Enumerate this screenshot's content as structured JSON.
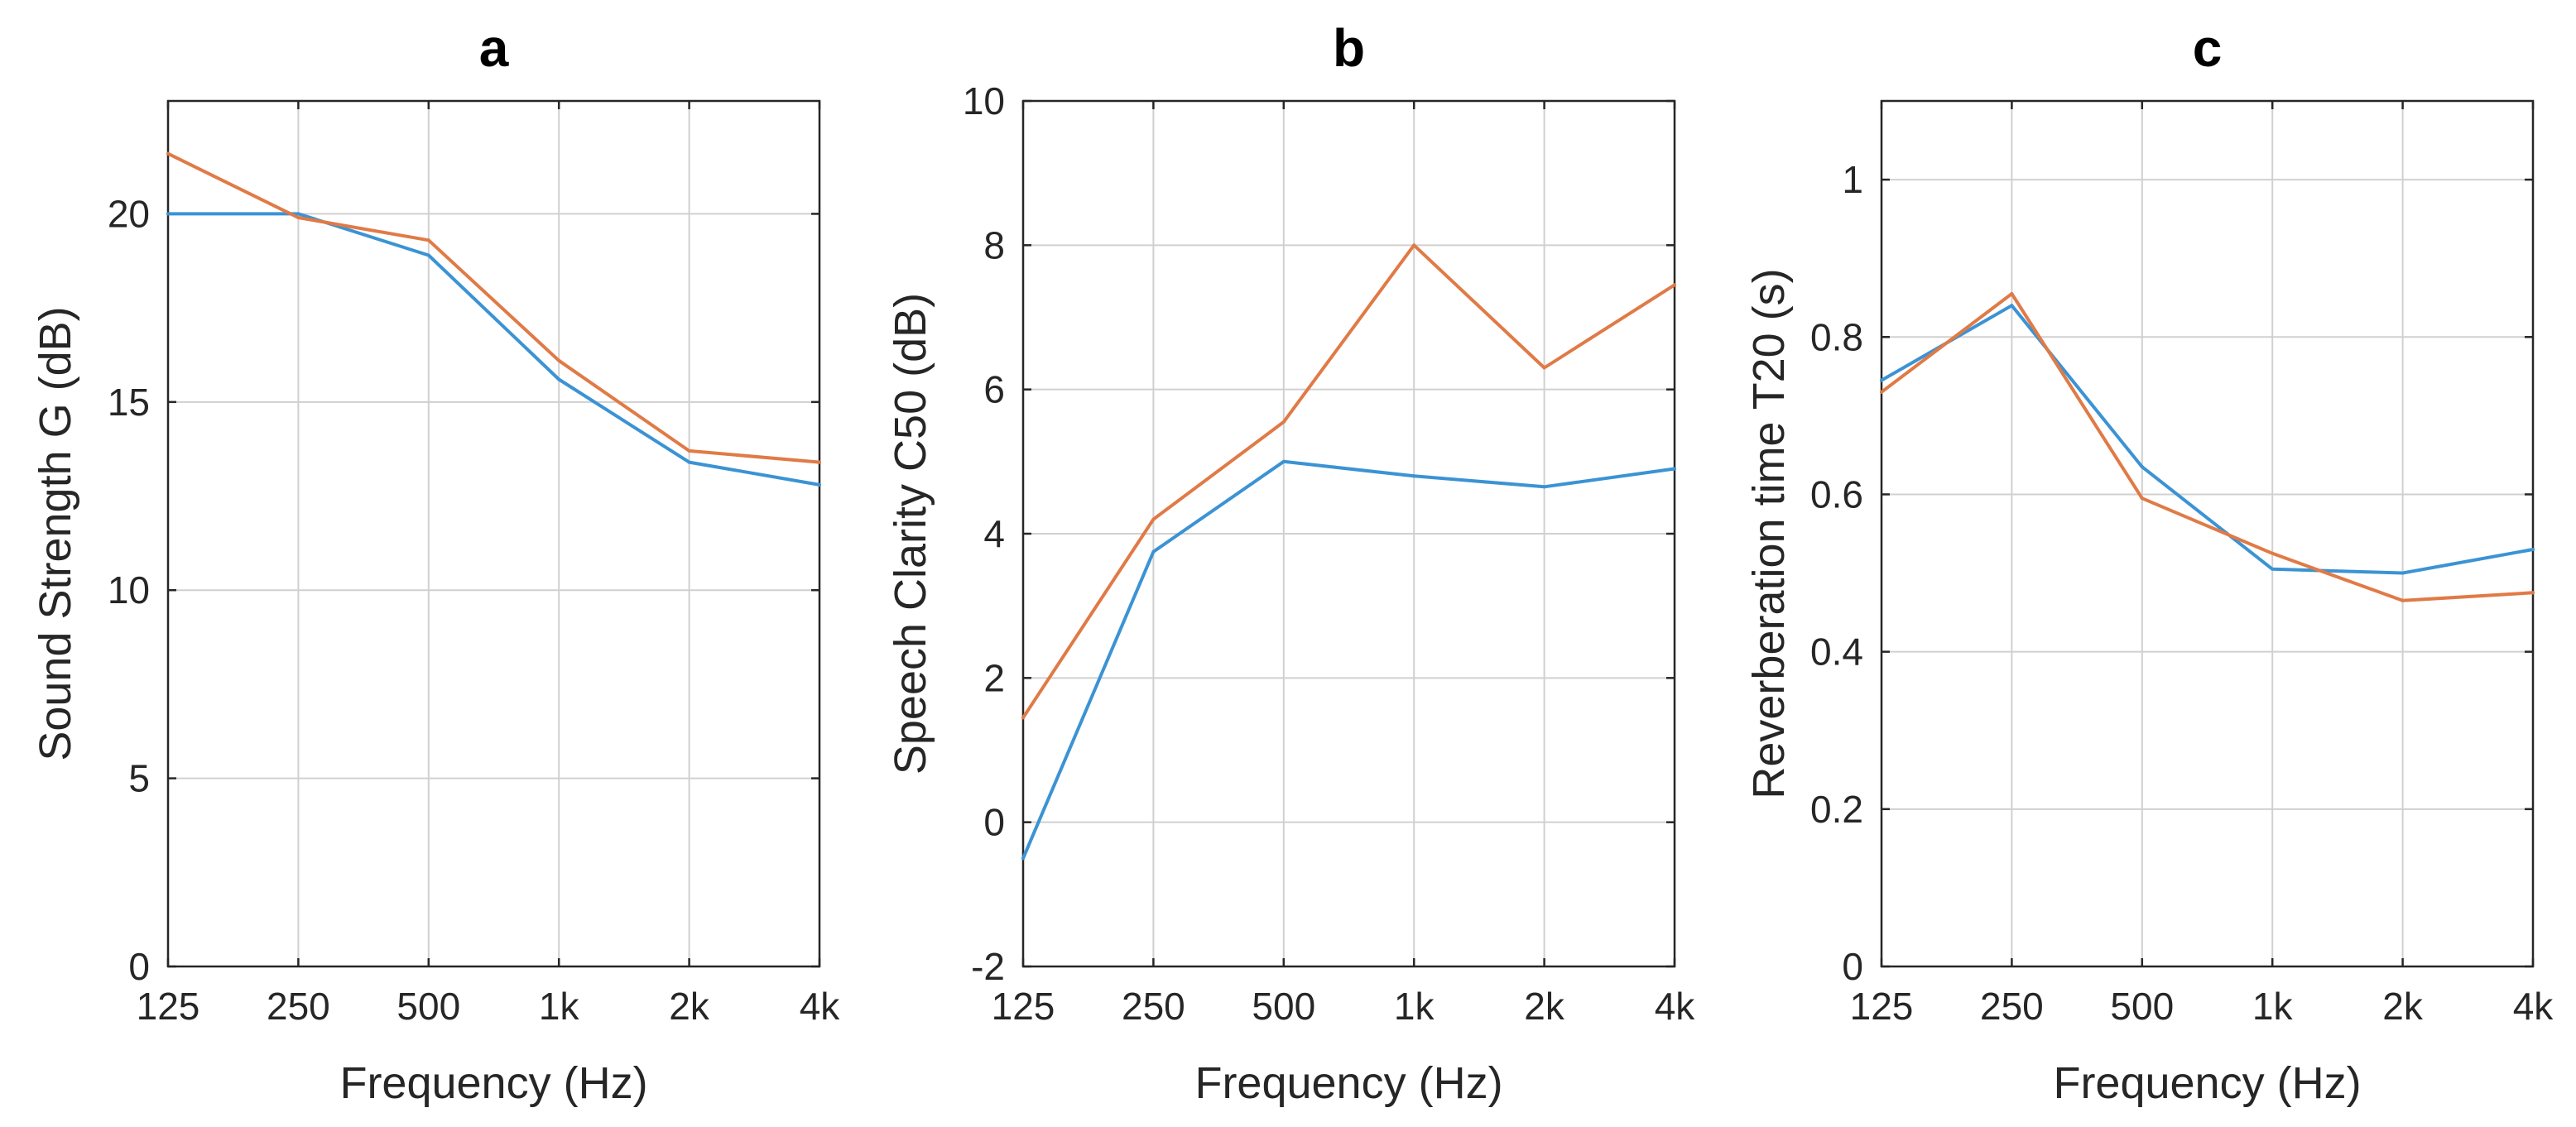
{
  "chart_data": [
    {
      "type": "line",
      "title": "a",
      "xlabel": "Frequency (Hz)",
      "ylabel": "Sound Strength G (dB)",
      "categories": [
        "125",
        "250",
        "500",
        "1k",
        "2k",
        "4k"
      ],
      "ylim": [
        0,
        23
      ],
      "yticks": [
        0,
        5,
        10,
        15,
        20
      ],
      "grid": true,
      "series": [
        {
          "name": "series-1",
          "color": "#3b93d4",
          "values": [
            20.0,
            20.0,
            18.9,
            15.6,
            13.4,
            12.8
          ]
        },
        {
          "name": "series-2",
          "color": "#e07a46",
          "values": [
            21.6,
            19.9,
            19.3,
            16.1,
            13.7,
            13.4
          ]
        }
      ]
    },
    {
      "type": "line",
      "title": "b",
      "xlabel": "Frequency (Hz)",
      "ylabel": "Speech Clarity C50 (dB)",
      "categories": [
        "125",
        "250",
        "500",
        "1k",
        "2k",
        "4k"
      ],
      "ylim": [
        -2,
        10
      ],
      "yticks": [
        -2,
        0,
        2,
        4,
        6,
        8,
        10
      ],
      "grid": true,
      "series": [
        {
          "name": "series-1",
          "color": "#3b93d4",
          "values": [
            -0.5,
            3.75,
            5.0,
            4.8,
            4.65,
            4.9
          ]
        },
        {
          "name": "series-2",
          "color": "#e07a46",
          "values": [
            1.45,
            4.2,
            5.55,
            8.0,
            6.3,
            7.45
          ]
        }
      ]
    },
    {
      "type": "line",
      "title": "c",
      "xlabel": "Frequency (Hz)",
      "ylabel": "Reverberation time T20 (s)",
      "categories": [
        "125",
        "250",
        "500",
        "1k",
        "2k",
        "4k"
      ],
      "ylim": [
        0,
        1.1
      ],
      "yticks": [
        0,
        0.2,
        0.4,
        0.6,
        0.8,
        1
      ],
      "grid": true,
      "series": [
        {
          "name": "series-1",
          "color": "#3b93d4",
          "values": [
            0.745,
            0.84,
            0.635,
            0.505,
            0.5,
            0.53
          ]
        },
        {
          "name": "series-2",
          "color": "#e07a46",
          "values": [
            0.73,
            0.855,
            0.595,
            0.525,
            0.465,
            0.475
          ]
        }
      ]
    }
  ]
}
